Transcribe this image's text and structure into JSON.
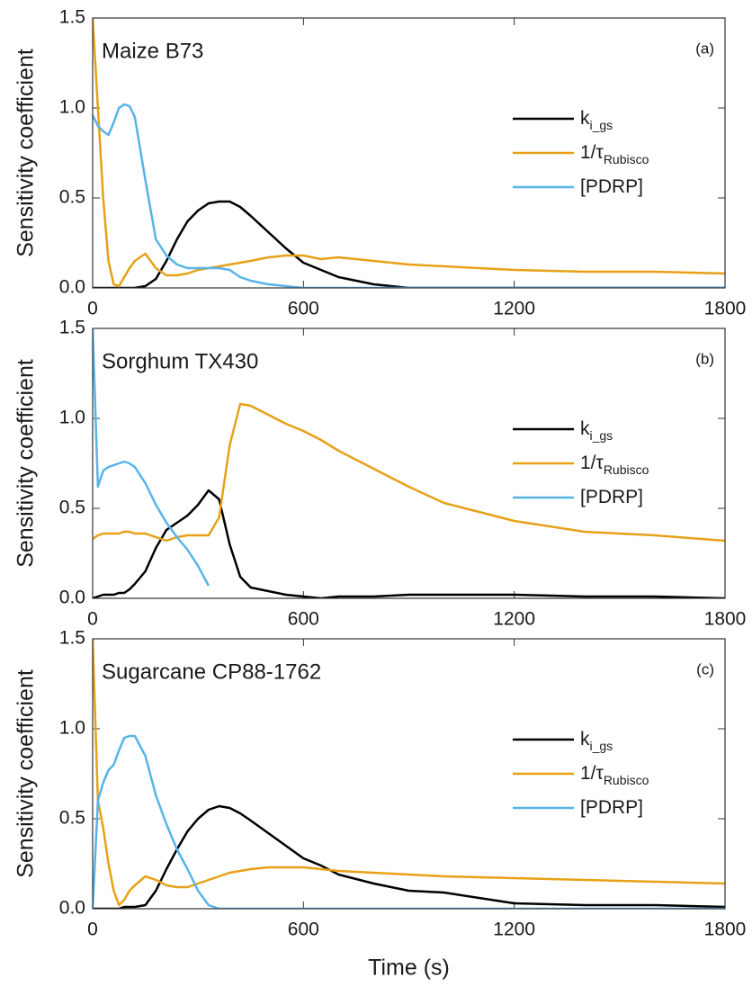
{
  "chart_data": [
    {
      "type": "line",
      "title": "Maize B73",
      "panel_label": "(a)",
      "ylabel": "Sensitivity coefficient",
      "x": [
        0,
        15,
        30,
        45,
        60,
        75,
        90,
        105,
        120,
        150,
        180,
        210,
        240,
        270,
        300,
        330,
        360,
        390,
        420,
        450,
        500,
        550,
        600,
        650,
        700,
        800,
        900,
        1000,
        1200,
        1400,
        1600,
        1800
      ],
      "series": [
        {
          "name": "k",
          "name_subscript": "i_gs",
          "color": "#000000",
          "values": [
            0,
            0,
            0,
            0,
            0,
            0,
            0,
            0,
            0,
            0.01,
            0.05,
            0.15,
            0.27,
            0.37,
            0.43,
            0.47,
            0.48,
            0.48,
            0.45,
            0.4,
            0.31,
            0.22,
            0.14,
            0.1,
            0.06,
            0.02,
            0,
            0,
            0,
            0,
            0,
            0
          ]
        },
        {
          "name": "1/τ",
          "name_subscript": "Rubisco",
          "color": "#e6a117",
          "values": [
            1.5,
            1.0,
            0.5,
            0.15,
            0.02,
            0.01,
            0.06,
            0.11,
            0.15,
            0.19,
            0.11,
            0.07,
            0.07,
            0.08,
            0.1,
            0.11,
            0.12,
            0.13,
            0.14,
            0.15,
            0.17,
            0.18,
            0.18,
            0.16,
            0.17,
            0.15,
            0.13,
            0.12,
            0.1,
            0.09,
            0.09,
            0.08
          ]
        },
        {
          "name": "[PDRP]",
          "color": "#56b4e9",
          "values": [
            0.96,
            0.9,
            0.87,
            0.85,
            0.92,
            1.0,
            1.02,
            1.01,
            0.95,
            0.6,
            0.27,
            0.18,
            0.13,
            0.11,
            0.11,
            0.11,
            0.11,
            0.1,
            0.06,
            0.04,
            0.02,
            0.01,
            0,
            0,
            0,
            0,
            0,
            0,
            0,
            0,
            0,
            0
          ]
        }
      ],
      "xlim": [
        0,
        1800
      ],
      "xticks": [
        0,
        600,
        1200,
        1800
      ],
      "ylim": [
        0,
        1.5
      ],
      "yticks": [
        {
          "value": 0,
          "label": "0.0"
        },
        0.5,
        {
          "value": 1,
          "label": "1.0"
        },
        1.5
      ],
      "legend": "right"
    },
    {
      "type": "line",
      "title": "Sorghum TX430",
      "panel_label": "(b)",
      "ylabel": "Sensitivity coefficient",
      "x": [
        0,
        15,
        30,
        45,
        60,
        75,
        90,
        105,
        120,
        150,
        180,
        210,
        240,
        270,
        300,
        330,
        360,
        390,
        420,
        450,
        500,
        550,
        600,
        650,
        700,
        800,
        900,
        1000,
        1200,
        1400,
        1600,
        1800
      ],
      "series": [
        {
          "name": "k",
          "name_subscript": "i_gs",
          "color": "#000000",
          "values": [
            0,
            0.01,
            0.02,
            0.02,
            0.02,
            0.03,
            0.03,
            0.05,
            0.08,
            0.15,
            0.28,
            0.38,
            0.42,
            0.46,
            0.52,
            0.6,
            0.55,
            0.3,
            0.12,
            0.06,
            0.04,
            0.02,
            0.01,
            0,
            0.01,
            0.01,
            0.02,
            0.02,
            0.02,
            0.01,
            0.01,
            0
          ]
        },
        {
          "name": "1/τ",
          "name_subscript": "Rubisco",
          "color": "#e6a117",
          "values": [
            0.33,
            0.35,
            0.36,
            0.36,
            0.36,
            0.36,
            0.37,
            0.37,
            0.36,
            0.36,
            0.34,
            0.32,
            0.34,
            0.35,
            0.35,
            0.35,
            0.45,
            0.85,
            1.08,
            1.07,
            1.02,
            0.97,
            0.93,
            0.88,
            0.82,
            0.72,
            0.62,
            0.53,
            0.43,
            0.37,
            0.35,
            0.32
          ]
        },
        {
          "name": "[PDRP]",
          "color": "#56b4e9",
          "values": [
            1.5,
            0.62,
            0.71,
            0.73,
            0.74,
            0.75,
            0.76,
            0.75,
            0.73,
            0.64,
            0.52,
            0.42,
            0.34,
            0.27,
            0.18,
            0.07,
            null,
            null,
            null,
            null,
            null,
            null,
            null,
            null,
            null,
            null,
            null,
            null,
            null,
            null,
            null,
            null
          ]
        }
      ],
      "xlim": [
        0,
        1800
      ],
      "xticks": [
        0,
        600,
        1200,
        1800
      ],
      "ylim": [
        0,
        1.5
      ],
      "yticks": [
        {
          "value": 0,
          "label": "0.0"
        },
        0.5,
        {
          "value": 1,
          "label": "1.0"
        },
        1.5
      ],
      "legend": "right"
    },
    {
      "type": "line",
      "title": "Sugarcane CP88-1762",
      "panel_label": "(c)",
      "ylabel": "Sensitivity coefficient",
      "xlabel": "Time (s)",
      "x": [
        0,
        15,
        30,
        45,
        60,
        75,
        90,
        105,
        120,
        150,
        180,
        210,
        240,
        270,
        300,
        330,
        360,
        390,
        420,
        450,
        500,
        550,
        600,
        650,
        700,
        800,
        900,
        1000,
        1200,
        1400,
        1600,
        1800
      ],
      "series": [
        {
          "name": "k",
          "name_subscript": "i_gs",
          "color": "#000000",
          "values": [
            0,
            0,
            0,
            0,
            0,
            0,
            0.01,
            0.01,
            0.01,
            0.02,
            0.1,
            0.22,
            0.33,
            0.43,
            0.5,
            0.55,
            0.57,
            0.56,
            0.53,
            0.49,
            0.42,
            0.35,
            0.28,
            0.24,
            0.19,
            0.14,
            0.1,
            0.09,
            0.03,
            0.02,
            0.02,
            0.01
          ]
        },
        {
          "name": "1/τ",
          "name_subscript": "Rubisco",
          "color": "#e6a117",
          "values": [
            1.5,
            0.6,
            0.45,
            0.25,
            0.1,
            0.02,
            0.05,
            0.1,
            0.13,
            0.18,
            0.16,
            0.13,
            0.12,
            0.12,
            0.14,
            0.16,
            0.18,
            0.2,
            0.21,
            0.22,
            0.23,
            0.23,
            0.23,
            0.22,
            0.21,
            0.2,
            0.19,
            0.18,
            0.17,
            0.16,
            0.15,
            0.14
          ]
        },
        {
          "name": "[PDRP]",
          "color": "#56b4e9",
          "values": [
            0,
            0.6,
            0.7,
            0.77,
            0.8,
            0.88,
            0.95,
            0.96,
            0.96,
            0.85,
            0.63,
            0.47,
            0.33,
            0.22,
            0.1,
            0.02,
            0,
            0,
            0,
            0,
            0,
            0,
            0,
            0,
            0,
            0,
            0,
            0,
            0,
            0,
            0,
            0
          ]
        }
      ],
      "xlim": [
        0,
        1800
      ],
      "xticks": [
        0,
        600,
        1200,
        1800
      ],
      "ylim": [
        0,
        1.5
      ],
      "yticks": [
        {
          "value": 0,
          "label": "0.0"
        },
        0.5,
        {
          "value": 1,
          "label": "1.0"
        },
        1.5
      ],
      "legend": "right"
    }
  ]
}
